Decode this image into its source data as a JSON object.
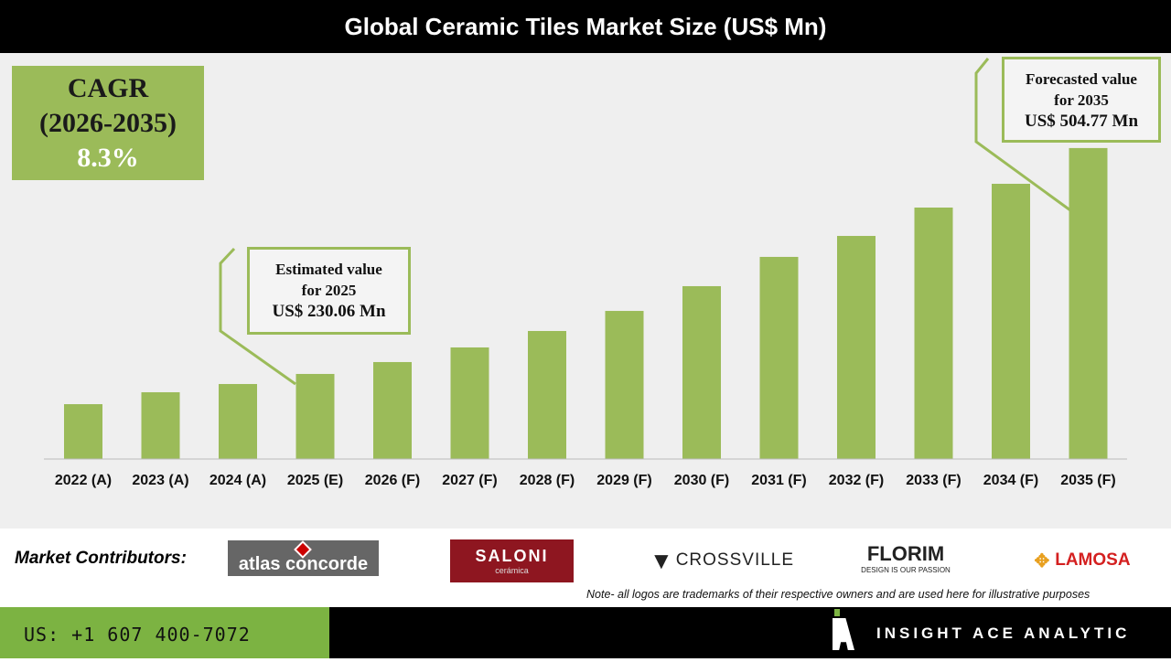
{
  "chart_data": {
    "type": "bar",
    "title": "Global Ceramic Tiles Market Size (US$ Mn)",
    "categories": [
      "2022 (A)",
      "2023 (A)",
      "2024 (A)",
      "2025 (E)",
      "2026 (F)",
      "2027 (F)",
      "2028 (F)",
      "2029 (F)",
      "2030 (F)",
      "2031 (F)",
      "2032 (F)",
      "2033 (F)",
      "2034 (F)",
      "2035 (F)"
    ],
    "values": [
      193.3,
      207.8,
      217.8,
      230.06,
      244.5,
      262.3,
      282.3,
      306.7,
      336.8,
      372.4,
      397.9,
      432.4,
      461.3,
      504.77
    ],
    "ylim": [
      126.6,
      520
    ],
    "grid": false,
    "bar_color": "#9bbb59",
    "xlabel": "",
    "ylabel": ""
  },
  "cagr": {
    "label": "CAGR",
    "period": "(2026-2035)",
    "value": "8.3%"
  },
  "annotations": {
    "estimated": {
      "line1": "Estimated value",
      "line2": "for 2025",
      "line3": "US$ 230.06 Mn"
    },
    "forecasted": {
      "line1": "Forecasted value",
      "line2": "for 2035",
      "line3": "US$ 504.77 Mn"
    }
  },
  "contributors": {
    "label": "Market Contributors:",
    "logos": [
      "atlas concorde",
      "SALONI",
      "CROSSVILLE",
      "FLORIM",
      "LAMOSA"
    ],
    "saloni_sub": "cerámica",
    "florim_sub": "DESIGN IS OUR PASSION",
    "note": "Note- all logos are trademarks of their respective owners and are used here for illustrative purposes"
  },
  "footer": {
    "phone": "US: +1 607 400-7072",
    "brand": "INSIGHT ACE ANALYTIC"
  }
}
